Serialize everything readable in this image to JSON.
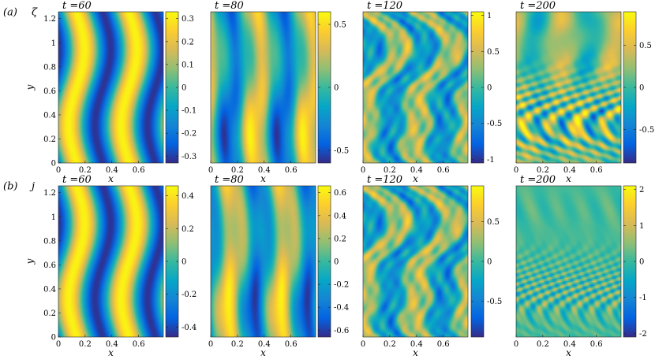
{
  "figure": {
    "x_label": "x",
    "y_label": "y",
    "x_ticks": [
      "0",
      "0.2",
      "0.4",
      "0.6"
    ],
    "x_tick_values": [
      0,
      0.2,
      0.4,
      0.6
    ],
    "x_range": [
      0,
      0.785
    ],
    "y_ticks": [
      "0",
      "0.2",
      "0.4",
      "0.6",
      "0.8",
      "1",
      "1.2"
    ],
    "y_tick_values": [
      0,
      0.2,
      0.4,
      0.6,
      0.8,
      1.0,
      1.2
    ],
    "y_range": [
      0,
      1.257
    ],
    "colormap": "parula",
    "colormap_stops": [
      "#352a87",
      "#0363e1",
      "#1485d4",
      "#06a7c6",
      "#38b99e",
      "#92bf73",
      "#d9ba56",
      "#fcce2e",
      "#f9fb0e"
    ],
    "rows": [
      {
        "label": "(a)",
        "variable": "ζ",
        "panels": [
          {
            "title": "t =60",
            "mode": "bands",
            "cbar_ticks": [
              "0.3",
              "0.2",
              "0.1",
              "0",
              "-0.1",
              "-0.2",
              "-0.3"
            ],
            "cbar_values": [
              0.3,
              0.2,
              0.1,
              0,
              -0.1,
              -0.2,
              -0.3
            ],
            "cbar_range": [
              -0.33,
              0.33
            ]
          },
          {
            "title": "t =80",
            "mode": "bands2",
            "cbar_ticks": [
              "0.5",
              "0",
              "-0.5"
            ],
            "cbar_values": [
              0.5,
              0,
              -0.5
            ],
            "cbar_range": [
              -0.6,
              0.6
            ]
          },
          {
            "title": "t =120",
            "mode": "turb1",
            "cbar_ticks": [
              "1",
              "0.5",
              "0",
              "-0.5",
              "-1"
            ],
            "cbar_values": [
              1,
              0.5,
              0,
              -0.5,
              -1
            ],
            "cbar_range": [
              -1.05,
              1.05
            ]
          },
          {
            "title": "t =200",
            "mode": "turb2",
            "cbar_ticks": [
              "0.5",
              "0",
              "-0.5"
            ],
            "cbar_values": [
              0.5,
              0,
              -0.5
            ],
            "cbar_range": [
              -0.9,
              0.9
            ]
          }
        ]
      },
      {
        "label": "(b)",
        "variable": "j",
        "panels": [
          {
            "title": "t =60",
            "mode": "bands",
            "cbar_ticks": [
              "0.4",
              "0.2",
              "0",
              "-0.2",
              "-0.4"
            ],
            "cbar_values": [
              0.4,
              0.2,
              0,
              -0.2,
              -0.4
            ],
            "cbar_range": [
              -0.46,
              0.46
            ]
          },
          {
            "title": "t =80",
            "mode": "bands2",
            "cbar_ticks": [
              "0.6",
              "0.4",
              "0.2",
              "0",
              "-0.2",
              "-0.4",
              "-0.6"
            ],
            "cbar_values": [
              0.6,
              0.4,
              0.2,
              0,
              -0.2,
              -0.4,
              -0.6
            ],
            "cbar_range": [
              -0.66,
              0.66
            ]
          },
          {
            "title": "t =120",
            "mode": "turb1",
            "cbar_ticks": [
              "0.5",
              "0",
              "-0.5"
            ],
            "cbar_values": [
              0.5,
              0,
              -0.5
            ],
            "cbar_range": [
              -0.95,
              0.95
            ]
          },
          {
            "title": "t =200",
            "mode": "turb3",
            "cbar_ticks": [
              "2",
              "1",
              "0",
              "-1",
              "-2"
            ],
            "cbar_values": [
              2,
              1,
              0,
              -1,
              -2
            ],
            "cbar_range": [
              -2.1,
              2.1
            ]
          }
        ]
      }
    ]
  }
}
